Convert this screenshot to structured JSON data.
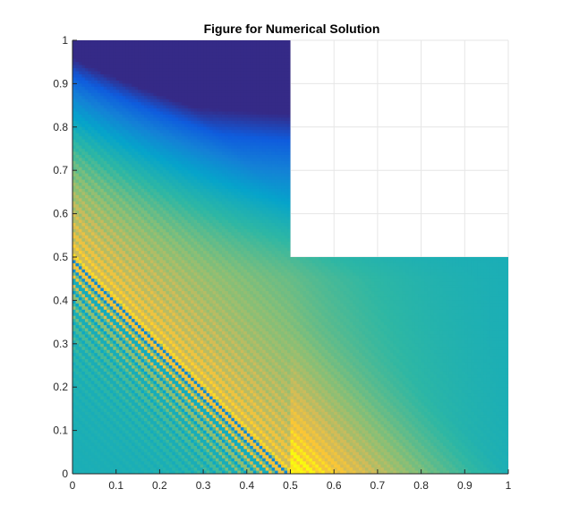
{
  "chart_data": {
    "type": "heatmap",
    "title": "Figure for Numerical Solution",
    "xlabel": "",
    "ylabel": "",
    "xlim": [
      0,
      1
    ],
    "ylim": [
      0,
      1
    ],
    "x_ticks": [
      "0",
      "0.1",
      "0.2",
      "0.3",
      "0.4",
      "0.5",
      "0.6",
      "0.7",
      "0.8",
      "0.9",
      "1"
    ],
    "y_ticks": [
      "0",
      "0.1",
      "0.2",
      "0.3",
      "0.4",
      "0.5",
      "0.6",
      "0.7",
      "0.8",
      "0.9",
      "1"
    ],
    "grid": true,
    "domain": "L-shaped region: [0,1]x[0,0.5] union [0,0.5]x[0.5,1]; upper-right quadrant [0.5,1]x[0.5,1] is empty",
    "colormap": "parula",
    "colormap_stops": [
      "#352a87",
      "#0f5cdd",
      "#1481d6",
      "#06a4ca",
      "#2eb7a4",
      "#87bf77",
      "#d1bb59",
      "#fec832",
      "#f9fb0e"
    ],
    "background_color": "#1fb5a9",
    "features": [
      {
        "description": "high-value band along the line x + y = 0.5 with dense oscillating stripes on the lower-left side",
        "value_level": "high"
      },
      {
        "description": "bright yellow maximum near the bottom edge around x = 0.55",
        "value_level": "max"
      },
      {
        "description": "dark blue minimum in the upper corner near (0.5, 1)",
        "value_level": "min"
      }
    ]
  }
}
